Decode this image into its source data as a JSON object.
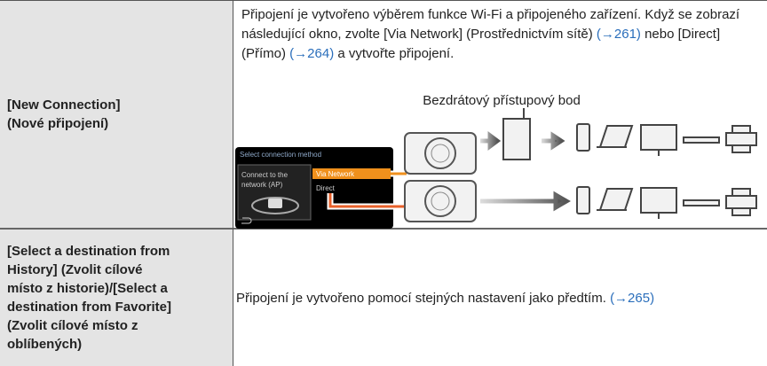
{
  "table": {
    "rows": [
      {
        "label": [
          "[New Connection]",
          "(Nové připojení)"
        ],
        "description": [
          {
            "text": "Připojení je vytvořeno výběrem funkce Wi-Fi a připojeného zařízení. Když se zobrazí následující okno, zvolte [Via Network] (Prostřednictvím sítě) "
          },
          {
            "ref": "(→261)"
          },
          {
            "text": " nebo [Direct] (Přímo) "
          },
          {
            "ref": "(→264)"
          },
          {
            "text": " a vytvořte připojení."
          }
        ],
        "diagram": {
          "access_point_label": "Bezdrátový přístupový bod",
          "screen_title": "Select connection method",
          "screen_info": [
            "Connect to the",
            "network (AP)"
          ],
          "options": [
            "Via Network",
            "Direct"
          ]
        }
      },
      {
        "label": [
          "[Select a destination from",
          "History] (Zvolit cílové",
          "místo z historie)/[Select a",
          "destination from Favorite]",
          "(Zvolit cílové místo z",
          "oblíbených)"
        ],
        "description": [
          {
            "text": "Připojení je vytvořeno pomocí stejných nastavení jako předtím. "
          },
          {
            "ref": "(→265)"
          }
        ]
      }
    ]
  }
}
